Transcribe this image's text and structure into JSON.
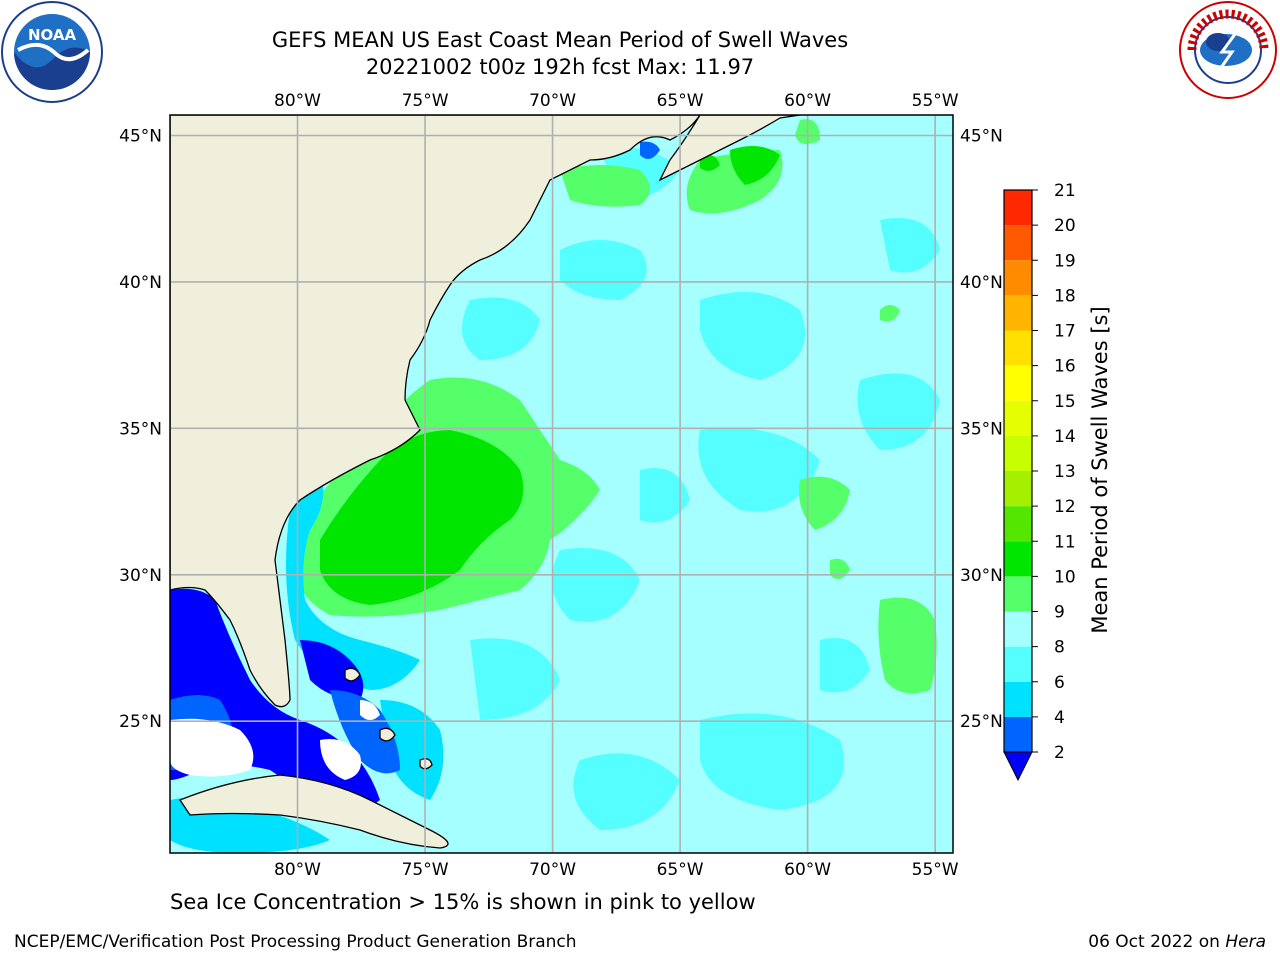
{
  "header": {
    "title_line1": "GEFS MEAN US East Coast Mean Period of Swell Waves",
    "title_line2": "20221002 t00z 192h fcst   Max: 11.97"
  },
  "logos": {
    "left": "noaa-logo",
    "right": "national-weather-service-logo"
  },
  "map": {
    "lon_ticks": [
      "80°W",
      "75°W",
      "70°W",
      "65°W",
      "60°W",
      "55°W"
    ],
    "lat_ticks": [
      "45°N",
      "40°N",
      "35°N",
      "30°N",
      "25°N"
    ],
    "lon_values": [
      -80,
      -75,
      -70,
      -65,
      -60,
      -55
    ],
    "lat_values": [
      45,
      40,
      35,
      30,
      25
    ],
    "extent": {
      "lon_min": -85,
      "lon_max": -54.3,
      "lat_min": 20.5,
      "lat_max": 45.7
    },
    "land_color": "#efefdc",
    "ocean_base_color": "#a5ffff",
    "grid_color": "#b0b0b0"
  },
  "colorbar": {
    "label": "Mean Period of Swell Waves [s]",
    "ticks": [
      "2",
      "4",
      "6",
      "8",
      "9",
      "10",
      "11",
      "12",
      "13",
      "14",
      "15",
      "16",
      "17",
      "18",
      "19",
      "20",
      "21"
    ],
    "colors": [
      "#0064ff",
      "#00e0ff",
      "#55ffff",
      "#a5ffff",
      "#55ff6a",
      "#00e600",
      "#55e600",
      "#a5f000",
      "#c8ff00",
      "#e6ff00",
      "#ffff00",
      "#ffe000",
      "#ffb400",
      "#ff8c00",
      "#ff5a00",
      "#ff2800",
      "#ff0000"
    ],
    "extend_color": "#0000ff"
  },
  "footer": {
    "note": "Sea Ice Concentration > 15% is shown in pink to yellow",
    "credit": "NCEP/EMC/Verification Post Processing Product Generation Branch",
    "date": "06 Oct 2022 on",
    "host": "Hera"
  }
}
